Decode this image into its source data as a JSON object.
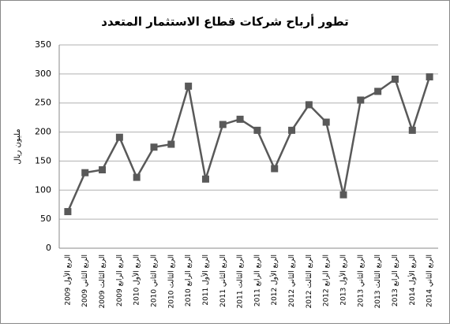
{
  "chart_data": {
    "type": "line",
    "title": "تطور أرباح شركات قطاع الاستثمار المتعدد",
    "y_label": "مليون ريال",
    "categories": [
      "الربع الأول 2009",
      "الربع الثاني 2009",
      "الربع الثالث 2009",
      "الربع الرابع 2009",
      "الربع الأول 2010",
      "الربع الثاني 2010",
      "الربع الثالث 2010",
      "الربع الرابع 2010",
      "الربع الأول 2011",
      "الربع الثاني 2011",
      "الربع الثالث 2011",
      "الربع الرابع 2011",
      "الربع الأول 2012",
      "الربع الثاني 2012",
      "الربع الثالث 2012",
      "الربع الرابع 2012",
      "الربع الأول 2013",
      "الربع الثاني 2013",
      "الربع الثالث 2013",
      "الربع الرابع 2013",
      "الربع الأول 2014",
      "الربع الثاني 2014"
    ],
    "values": [
      63,
      130,
      135,
      191,
      122,
      174,
      179,
      279,
      119,
      213,
      222,
      203,
      137,
      203,
      247,
      217,
      92,
      255,
      270,
      291,
      203,
      295
    ],
    "color": "#595959",
    "ylim": [
      0,
      350
    ],
    "yticks": [
      0,
      50,
      100,
      150,
      200,
      250,
      300,
      350
    ],
    "grid": true
  }
}
